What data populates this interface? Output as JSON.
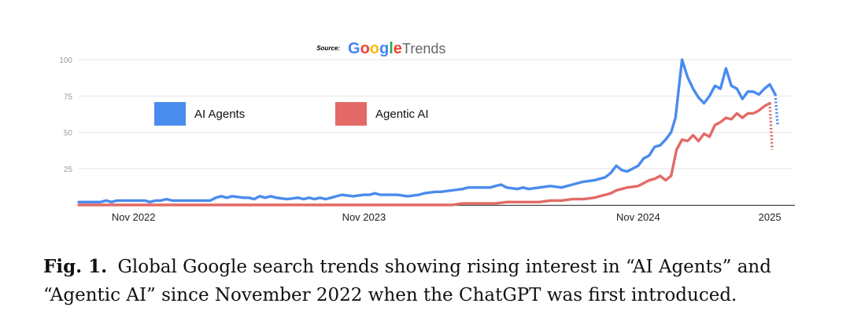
{
  "source": {
    "prefix": "Source:",
    "brand": "Google",
    "product": "Trends",
    "brand_letter_colors": [
      "#4285F4",
      "#EA4335",
      "#FBBC05",
      "#4285F4",
      "#34A853",
      "#EA4335"
    ]
  },
  "caption": {
    "label": "Fig. 1.",
    "text": "Global Google search trends showing rising interest in “AI Agents” and “Agentic AI” since November 2022 when the ChatGPT was first introduced."
  },
  "chart_data": {
    "type": "line",
    "title": "",
    "xlabel": "",
    "ylabel": "",
    "ylim": [
      0,
      100
    ],
    "xlim": [
      0,
      130
    ],
    "grid": true,
    "y_ticks": [
      {
        "value": 100,
        "label": "100"
      },
      {
        "value": 75,
        "label": "75"
      },
      {
        "value": 50,
        "label": "50"
      },
      {
        "value": 25,
        "label": "25"
      }
    ],
    "x_ticks": [
      {
        "value": 10,
        "label": "Nov 2022"
      },
      {
        "value": 52,
        "label": "Nov 2023"
      },
      {
        "value": 102,
        "label": "Nov 2024"
      },
      {
        "value": 126,
        "label": "2025"
      }
    ],
    "legend": [
      {
        "label": "AI Agents",
        "color": "#4a8bee"
      },
      {
        "label": "Agentic AI",
        "color": "#e36a66"
      }
    ],
    "series": [
      {
        "name": "AI Agents",
        "color": "#4a8bee",
        "dashed_tail": [
          76,
          55
        ],
        "points": [
          [
            0,
            2
          ],
          [
            4,
            2
          ],
          [
            5,
            3
          ],
          [
            6,
            2
          ],
          [
            7,
            3
          ],
          [
            8,
            3
          ],
          [
            10,
            3
          ],
          [
            12,
            3
          ],
          [
            13,
            2
          ],
          [
            14,
            3
          ],
          [
            15,
            3
          ],
          [
            16,
            4
          ],
          [
            17,
            3
          ],
          [
            20,
            3
          ],
          [
            22,
            3
          ],
          [
            24,
            3
          ],
          [
            25,
            5
          ],
          [
            26,
            6
          ],
          [
            27,
            5
          ],
          [
            28,
            6
          ],
          [
            30,
            5
          ],
          [
            31,
            5
          ],
          [
            32,
            4
          ],
          [
            33,
            6
          ],
          [
            34,
            5
          ],
          [
            35,
            6
          ],
          [
            36,
            5
          ],
          [
            38,
            4
          ],
          [
            40,
            5
          ],
          [
            41,
            4
          ],
          [
            42,
            5
          ],
          [
            43,
            4
          ],
          [
            44,
            5
          ],
          [
            45,
            4
          ],
          [
            46,
            5
          ],
          [
            47,
            6
          ],
          [
            48,
            7
          ],
          [
            50,
            6
          ],
          [
            52,
            7
          ],
          [
            53,
            7
          ],
          [
            54,
            8
          ],
          [
            55,
            7
          ],
          [
            58,
            7
          ],
          [
            60,
            6
          ],
          [
            62,
            7
          ],
          [
            63,
            8
          ],
          [
            65,
            9
          ],
          [
            66,
            9
          ],
          [
            68,
            10
          ],
          [
            70,
            11
          ],
          [
            71,
            12
          ],
          [
            73,
            12
          ],
          [
            75,
            12
          ],
          [
            76,
            13
          ],
          [
            77,
            14
          ],
          [
            78,
            12
          ],
          [
            80,
            11
          ],
          [
            81,
            12
          ],
          [
            82,
            11
          ],
          [
            84,
            12
          ],
          [
            86,
            13
          ],
          [
            88,
            12
          ],
          [
            90,
            14
          ],
          [
            92,
            16
          ],
          [
            94,
            17
          ],
          [
            96,
            19
          ],
          [
            97,
            22
          ],
          [
            98,
            27
          ],
          [
            99,
            24
          ],
          [
            100,
            23
          ],
          [
            102,
            27
          ],
          [
            103,
            32
          ],
          [
            104,
            34
          ],
          [
            105,
            40
          ],
          [
            106,
            41
          ],
          [
            107,
            45
          ],
          [
            108,
            50
          ],
          [
            108.8,
            60
          ],
          [
            109.4,
            80
          ],
          [
            110,
            100
          ],
          [
            111,
            88
          ],
          [
            112,
            80
          ],
          [
            113,
            74
          ],
          [
            114,
            70
          ],
          [
            115,
            75
          ],
          [
            116,
            82
          ],
          [
            117,
            80
          ],
          [
            118,
            94
          ],
          [
            119,
            82
          ],
          [
            120,
            80
          ],
          [
            121,
            73
          ],
          [
            122,
            78
          ],
          [
            123,
            78
          ],
          [
            124,
            76
          ],
          [
            125,
            80
          ],
          [
            126,
            83
          ],
          [
            127,
            76
          ]
        ]
      },
      {
        "name": "Agentic AI",
        "color": "#e36a66",
        "dashed_tail": [
          70,
          38
        ],
        "points": [
          [
            0,
            0
          ],
          [
            10,
            0
          ],
          [
            20,
            0
          ],
          [
            30,
            0
          ],
          [
            40,
            0
          ],
          [
            50,
            0
          ],
          [
            60,
            0
          ],
          [
            68,
            0
          ],
          [
            70,
            1
          ],
          [
            76,
            1
          ],
          [
            78,
            2
          ],
          [
            82,
            2
          ],
          [
            84,
            2
          ],
          [
            86,
            3
          ],
          [
            88,
            3
          ],
          [
            90,
            4
          ],
          [
            92,
            4
          ],
          [
            94,
            5
          ],
          [
            95,
            6
          ],
          [
            96,
            7
          ],
          [
            97,
            8
          ],
          [
            98,
            10
          ],
          [
            100,
            12
          ],
          [
            102,
            13
          ],
          [
            103,
            15
          ],
          [
            104,
            17
          ],
          [
            105,
            18
          ],
          [
            106,
            20
          ],
          [
            107,
            17
          ],
          [
            108,
            20
          ],
          [
            109,
            38
          ],
          [
            110,
            45
          ],
          [
            111,
            44
          ],
          [
            112,
            48
          ],
          [
            113,
            44
          ],
          [
            114,
            49
          ],
          [
            115,
            47
          ],
          [
            116,
            55
          ],
          [
            117,
            57
          ],
          [
            118,
            60
          ],
          [
            119,
            59
          ],
          [
            120,
            63
          ],
          [
            121,
            60
          ],
          [
            122,
            63
          ],
          [
            123,
            63
          ],
          [
            124,
            65
          ],
          [
            125,
            68
          ],
          [
            126,
            70
          ]
        ]
      }
    ]
  }
}
